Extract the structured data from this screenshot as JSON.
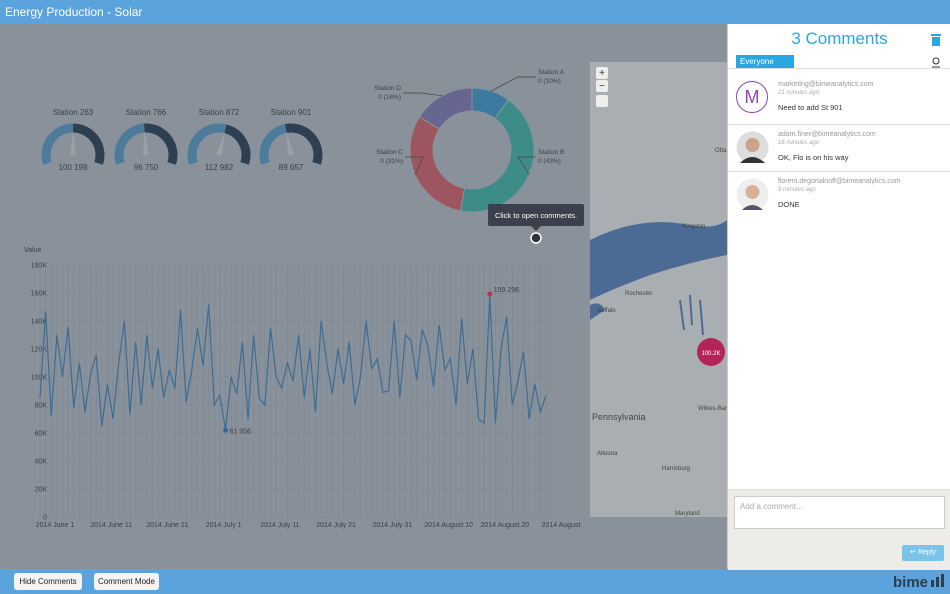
{
  "header": {
    "title": "Energy Production - Solar"
  },
  "chart_data": [
    {
      "type": "gauge",
      "categories": [
        "Station 263",
        "Station 766",
        "Station 872",
        "Station 901"
      ],
      "values": [
        100198,
        96750,
        112982,
        89657
      ],
      "value_labels": [
        "100 198",
        "96 750",
        "112 982",
        "89 657"
      ],
      "ylim": [
        0,
        200000
      ],
      "colors": [
        "#4d7b9b",
        "#2e3f52"
      ]
    },
    {
      "type": "pie",
      "donut": true,
      "categories": [
        "Station A",
        "Station B",
        "Station C",
        "Station D"
      ],
      "values": [
        10,
        43,
        31,
        16
      ],
      "value_labels": [
        "0 (10%)",
        "0 (43%)",
        "0 (31%)",
        "0 (16%)"
      ],
      "colors": [
        "#3d7aa0",
        "#3d8c88",
        "#9d5560",
        "#676690"
      ]
    },
    {
      "type": "line",
      "ylabel": "Value",
      "color": "#3b6d97",
      "grid": true,
      "categories": [
        "2014 June 1",
        null,
        null,
        null,
        null,
        null,
        null,
        null,
        null,
        null,
        "2014 June 11",
        null,
        null,
        null,
        null,
        null,
        null,
        null,
        null,
        null,
        "2014 June 21",
        null,
        null,
        null,
        null,
        null,
        null,
        null,
        null,
        null,
        "2014 July 1",
        null,
        null,
        null,
        null,
        null,
        null,
        null,
        null,
        null,
        "2014 July 11",
        null,
        null,
        null,
        null,
        null,
        null,
        null,
        null,
        null,
        "2014 July 21",
        null,
        null,
        null,
        null,
        null,
        null,
        null,
        null,
        null,
        "2014 July 31",
        null,
        null,
        null,
        null,
        null,
        null,
        null,
        null,
        null,
        "2014 August 10",
        null,
        null,
        null,
        null,
        null,
        null,
        null,
        null,
        null,
        "2014 August 20",
        null,
        null,
        null,
        null,
        null,
        null,
        null,
        null,
        null,
        "2014 August"
      ],
      "values": [
        85000,
        147000,
        72000,
        130000,
        100000,
        136000,
        78000,
        110000,
        75000,
        102000,
        116000,
        65000,
        95000,
        70000,
        110000,
        140000,
        73000,
        125000,
        80000,
        130000,
        92000,
        120000,
        85000,
        105000,
        92000,
        148000,
        82000,
        105000,
        135000,
        108000,
        152000,
        80000,
        87000,
        61956,
        100000,
        88000,
        125000,
        70000,
        130000,
        85000,
        80000,
        135000,
        100000,
        92000,
        110000,
        97000,
        130000,
        85000,
        120000,
        75000,
        140000,
        110000,
        88000,
        120000,
        95000,
        125000,
        80000,
        100000,
        140000,
        106000,
        113000,
        89000,
        90000,
        140000,
        85000,
        130000,
        126000,
        98000,
        134000,
        122000,
        93000,
        137000,
        105000,
        113000,
        80000,
        142000,
        95000,
        120000,
        70000,
        67000,
        159296,
        67000,
        120000,
        143000,
        80000,
        97000,
        118000,
        70000,
        95000,
        75000,
        87000
      ],
      "value_labels": [
        null,
        null,
        null,
        null,
        null,
        null,
        null,
        null,
        null,
        null,
        null,
        null,
        null,
        null,
        null,
        null,
        null,
        null,
        null,
        null,
        null,
        null,
        null,
        null,
        null,
        null,
        null,
        null,
        null,
        null,
        null,
        null,
        null,
        "61 956",
        null,
        null,
        null,
        null,
        null,
        null,
        null,
        null,
        null,
        null,
        null,
        null,
        null,
        null,
        null,
        null,
        null,
        null,
        null,
        null,
        null,
        null,
        null,
        null,
        null,
        null,
        null,
        null,
        null,
        null,
        null,
        null,
        null,
        null,
        null,
        null,
        null,
        null,
        null,
        null,
        null,
        null,
        null,
        null,
        null,
        null,
        "159 296",
        null,
        null,
        null,
        null,
        null,
        null,
        null,
        null,
        null,
        null
      ],
      "ylim": [
        0,
        180000
      ],
      "yticks": [
        0,
        {
          "value": 20000,
          "label": "20K"
        },
        {
          "value": 40000,
          "label": "40K"
        },
        {
          "value": 60000,
          "label": "60K"
        },
        {
          "value": 80000,
          "label": "80K"
        },
        {
          "value": 100000,
          "label": "100K"
        },
        {
          "value": 120000,
          "label": "120K"
        },
        {
          "value": 140000,
          "label": "140K"
        },
        {
          "value": 160000,
          "label": "160K"
        },
        {
          "value": 180000,
          "label": "180K"
        }
      ]
    }
  ],
  "tooltip": {
    "text": "Click to open comments."
  },
  "map": {
    "labels": [
      "Otta",
      "Kingston",
      "Rochester",
      "Buffalo",
      "Pennsylvania",
      "Wilkes-Barre",
      "Altoona",
      "Harrisburg",
      "Maryland"
    ],
    "bubble": "100.2K",
    "controls": [
      "+",
      "−"
    ]
  },
  "comments": {
    "title": "3 Comments",
    "filter": "Everyone",
    "items": [
      {
        "avatar": "M",
        "author": "marketing@bimeanalytics.com",
        "time": "21 minutes ago",
        "text": "Need to add St 901"
      },
      {
        "author": "adam.finer@bimeanalytics.com",
        "time": "16 minutes ago",
        "text": "OK, Flo is on his way"
      },
      {
        "author": "florent.degorialnoff@bimeanalytics.com",
        "time": "9 minutes ago",
        "text": "DONE"
      }
    ],
    "placeholder": "Add a comment...",
    "reply": "↵ Reply"
  },
  "footer": {
    "buttons": [
      "Hide Comments",
      "Comment Mode"
    ],
    "logo": "bime"
  }
}
